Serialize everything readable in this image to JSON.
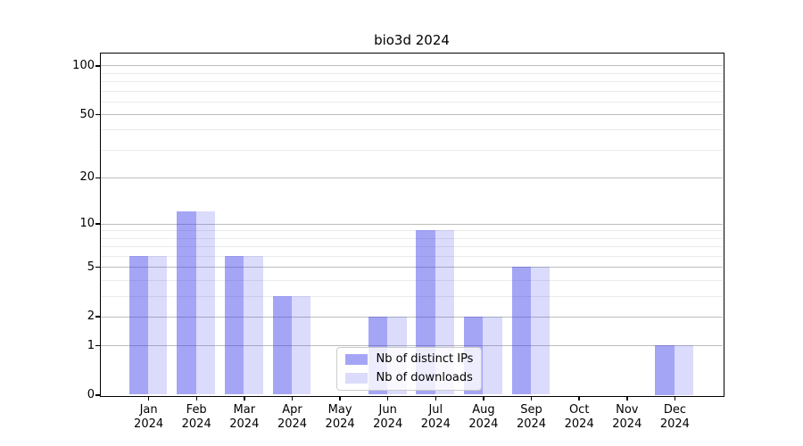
{
  "chart_data": {
    "type": "bar",
    "title": "bio3d 2024",
    "categories": [
      "Jan",
      "Feb",
      "Mar",
      "Apr",
      "May",
      "Jun",
      "Jul",
      "Aug",
      "Sep",
      "Oct",
      "Nov",
      "Dec"
    ],
    "x_tick_year": "2024",
    "series": [
      {
        "name": "Nb of distinct IPs",
        "color": "rgba(55,55,235,0.45)",
        "color_hex_on_white": "#a9a9f2",
        "values": [
          6,
          12,
          6,
          3,
          0,
          2,
          9,
          2,
          5,
          0,
          0,
          1
        ]
      },
      {
        "name": "Nb of downloads",
        "color": "rgba(55,55,235,0.18)",
        "color_hex_on_white": "#dbdbf8",
        "values": [
          6,
          12,
          6,
          3,
          0,
          2,
          9,
          2,
          5,
          0,
          0,
          1
        ]
      }
    ],
    "yscale": "log1p",
    "ylim": [
      0,
      119
    ],
    "ymajor_ticks": [
      0,
      1,
      2,
      5,
      10,
      20,
      50,
      100
    ],
    "yminor_gridlines": [
      3,
      4,
      6,
      7,
      8,
      9,
      30,
      40,
      60,
      70,
      80,
      90
    ],
    "grid": true,
    "legend_position": "lower-center",
    "colors": {
      "major_grid": "#bdbdbd",
      "minor_grid": "#ebebeb",
      "axis": "#000000",
      "legend_border": "#cccccc",
      "legend_background": "rgba(255,255,255,0.8)"
    }
  }
}
